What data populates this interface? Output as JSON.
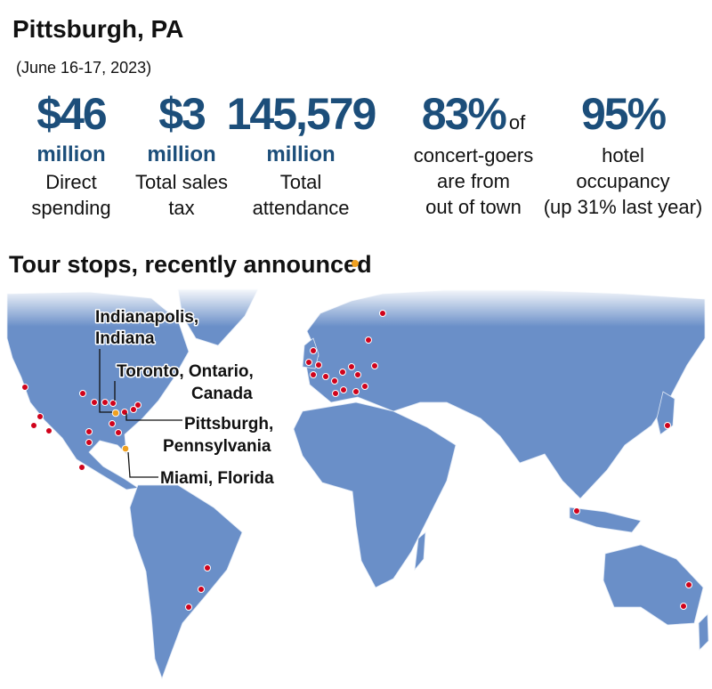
{
  "header": {
    "title": "Pittsburgh, PA",
    "date": "(June 16-17, 2023)"
  },
  "stats": [
    {
      "value": "$46",
      "unit": "million",
      "label": [
        "Direct",
        "spending"
      ]
    },
    {
      "value": "$3",
      "unit": "million",
      "label": [
        "Total sales",
        "tax"
      ]
    },
    {
      "value": "145,579",
      "unit": "million",
      "label": [
        "Total",
        "attendance"
      ]
    },
    {
      "value": "83%",
      "suffix": "of",
      "label": [
        "concert-goers",
        "are from",
        "out of town"
      ]
    },
    {
      "value": "95%",
      "label": [
        "hotel",
        "occupancy",
        "(up 31% last year)"
      ]
    }
  ],
  "map": {
    "title": "Tour stops, recently announced",
    "labels": [
      {
        "lines": [
          "Indianapolis,",
          "Indiana"
        ]
      },
      {
        "lines": [
          "Toronto, Ontario,",
          "Canada"
        ]
      },
      {
        "lines": [
          "Pittsburgh,",
          "Pennsylvania"
        ]
      },
      {
        "lines": [
          "Miami, Florida"
        ]
      }
    ]
  }
}
